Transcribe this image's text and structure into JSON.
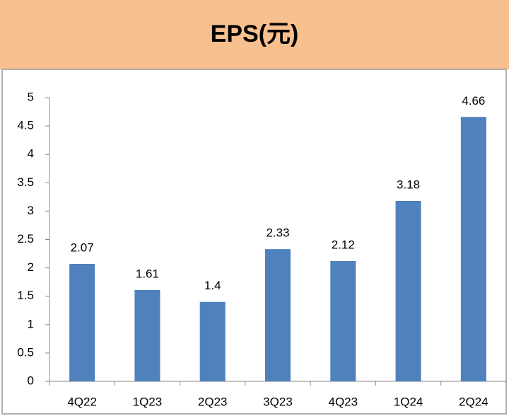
{
  "chart_data": {
    "type": "bar",
    "title": "EPS(元)",
    "categories": [
      "4Q22",
      "1Q23",
      "2Q23",
      "3Q23",
      "4Q23",
      "1Q24",
      "2Q24"
    ],
    "values": [
      2.07,
      1.61,
      1.4,
      2.33,
      2.12,
      3.18,
      4.66
    ],
    "color": "#4f81bd",
    "ylim": [
      0,
      5
    ],
    "yticks": [
      0,
      0.5,
      1,
      1.5,
      2,
      2.5,
      3,
      3.5,
      4,
      4.5,
      5
    ]
  }
}
